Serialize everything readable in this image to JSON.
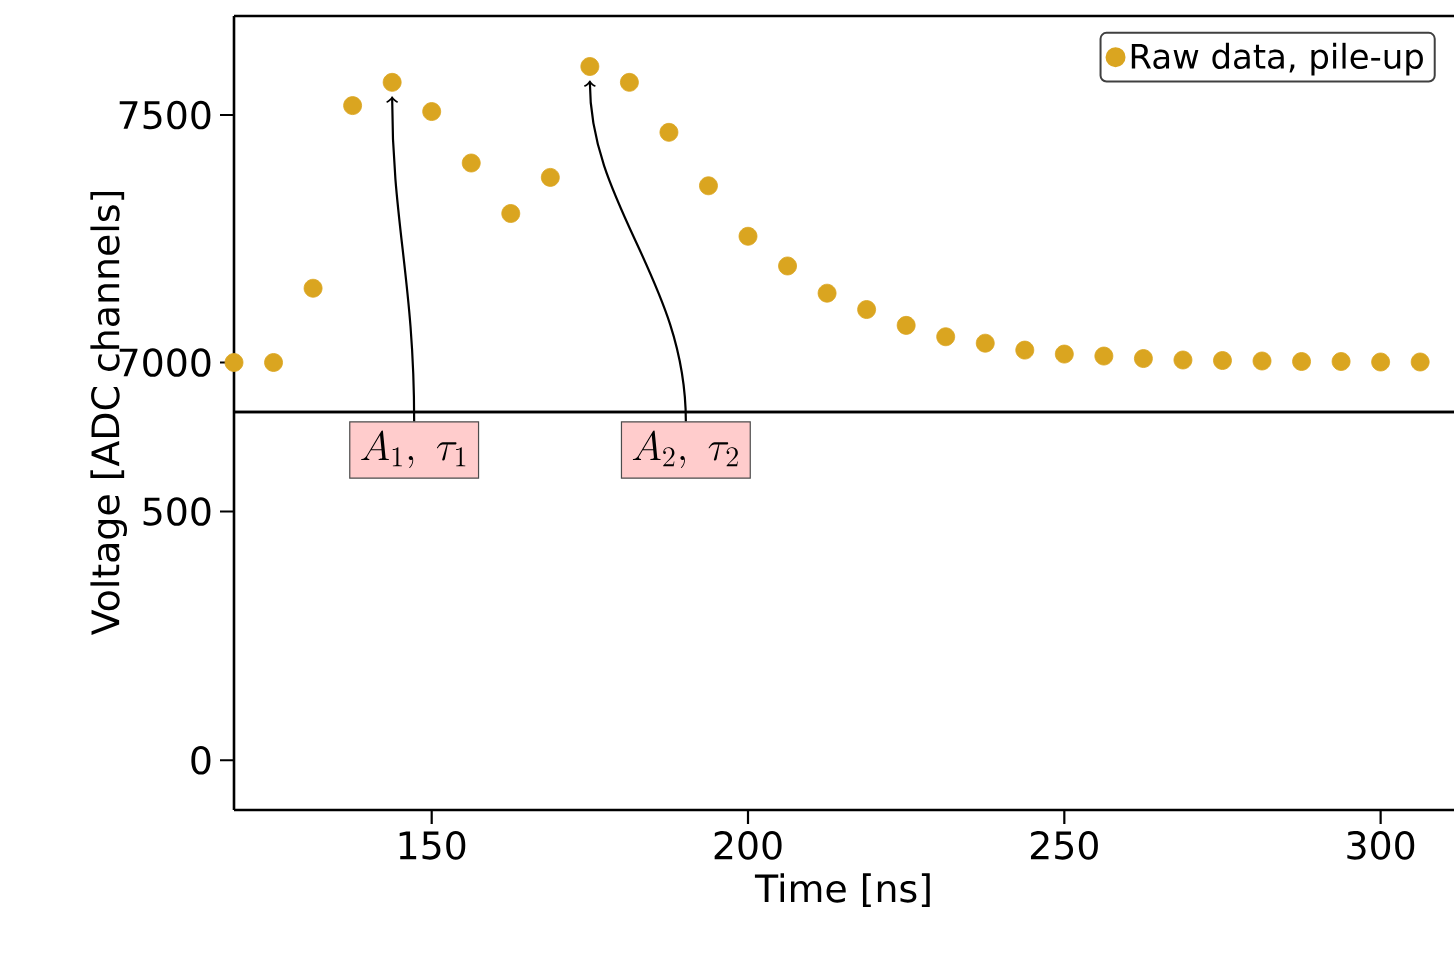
{
  "chart_data": [
    {
      "type": "scatter",
      "xlim": [
        118.75,
        311.6
      ],
      "ylim": [
        6900,
        7700
      ],
      "yticks": [
        7000,
        7500
      ],
      "tick_labels": "y",
      "legend": "top right",
      "marker": "circle",
      "x": [
        118.75,
        125,
        131.25,
        137.5,
        143.75,
        150,
        156.25,
        162.5,
        168.75,
        175,
        181.25,
        187.5,
        193.75,
        200,
        206.25,
        212.5,
        218.75,
        225,
        231.25,
        237.5,
        243.75,
        250,
        256.25,
        262.5,
        268.75,
        275,
        281.25,
        287.5,
        293.75,
        300,
        306.25
      ],
      "series": [
        {
          "name": "Raw data, pile-up",
          "color": "#daa520",
          "values": [
            7000,
            7000,
            7150,
            7519,
            7566,
            7507,
            7403,
            7301,
            7374,
            7598,
            7566,
            7465,
            7357,
            7255,
            7195,
            7140,
            7107,
            7075,
            7052,
            7039,
            7025,
            7017,
            7013,
            7008,
            7005,
            7004,
            7003,
            7002,
            7002,
            7001,
            7001
          ]
        }
      ],
      "annotations": [
        {
          "text": "A_1,\\ \\tau_1",
          "x": 143.75,
          "y": 7566
        },
        {
          "text": "A_2,\\ \\tau_2",
          "x": 175,
          "y": 7598
        }
      ]
    },
    {
      "type": "scatter",
      "xlim": [
        118.75,
        311.6
      ],
      "ylim": [
        -100,
        700
      ],
      "xticks": [
        150,
        200,
        250,
        300
      ],
      "yticks": [
        0,
        500
      ],
      "xlabel": "Time [ns]",
      "ylabel": "Voltage [ADC channels]"
    }
  ]
}
